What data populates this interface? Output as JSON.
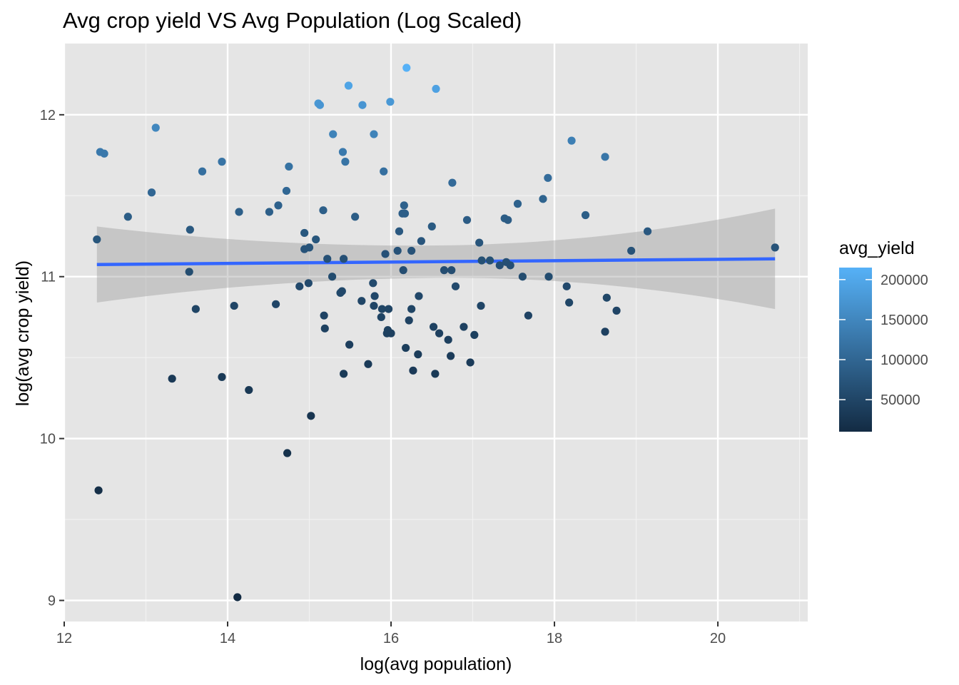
{
  "chart_data": {
    "type": "scatter",
    "title": "Avg crop yield VS Avg Population  (Log Scaled)",
    "xlabel": "log(avg population)",
    "ylabel": "log(avg crop yield)",
    "xlim": [
      12,
      21.1
    ],
    "ylim": [
      8.87,
      12.44
    ],
    "x_ticks": [
      12,
      14,
      16,
      18,
      20
    ],
    "y_ticks": [
      9,
      10,
      11,
      12
    ],
    "grid": true,
    "legend": {
      "title": "avg_yield",
      "position": "right",
      "range": [
        10000,
        215000
      ],
      "ticks": [
        50000,
        100000,
        150000,
        200000
      ],
      "color_low": "#132b43",
      "color_high": "#56b1f7"
    },
    "smooth": {
      "method": "lm",
      "color": "#3366ff",
      "ribbon_color": "#999999",
      "x_range": [
        12.4,
        20.7
      ],
      "fit": [
        11.075,
        11.11
      ],
      "se_lower": [
        10.84,
        10.8
      ],
      "se_upper": [
        11.31,
        11.42
      ]
    },
    "points": [
      {
        "x": 12.4,
        "y": 11.23
      },
      {
        "x": 12.42,
        "y": 9.68
      },
      {
        "x": 12.44,
        "y": 11.77
      },
      {
        "x": 12.49,
        "y": 11.76
      },
      {
        "x": 12.78,
        "y": 11.37
      },
      {
        "x": 13.07,
        "y": 11.52
      },
      {
        "x": 13.12,
        "y": 11.92
      },
      {
        "x": 13.32,
        "y": 10.37
      },
      {
        "x": 13.53,
        "y": 11.03
      },
      {
        "x": 13.54,
        "y": 11.29
      },
      {
        "x": 13.61,
        "y": 10.8
      },
      {
        "x": 13.69,
        "y": 11.65
      },
      {
        "x": 13.93,
        "y": 10.38
      },
      {
        "x": 13.93,
        "y": 11.71
      },
      {
        "x": 14.08,
        "y": 10.82
      },
      {
        "x": 14.12,
        "y": 9.02
      },
      {
        "x": 14.14,
        "y": 11.4
      },
      {
        "x": 14.26,
        "y": 10.3
      },
      {
        "x": 14.51,
        "y": 11.4
      },
      {
        "x": 14.59,
        "y": 10.83
      },
      {
        "x": 14.62,
        "y": 11.44
      },
      {
        "x": 14.72,
        "y": 11.53
      },
      {
        "x": 14.73,
        "y": 9.91
      },
      {
        "x": 14.75,
        "y": 11.68
      },
      {
        "x": 14.88,
        "y": 10.94
      },
      {
        "x": 14.94,
        "y": 11.27
      },
      {
        "x": 14.94,
        "y": 11.17
      },
      {
        "x": 14.99,
        "y": 10.96
      },
      {
        "x": 15.0,
        "y": 11.18
      },
      {
        "x": 15.02,
        "y": 10.14
      },
      {
        "x": 15.08,
        "y": 11.23
      },
      {
        "x": 15.11,
        "y": 12.07
      },
      {
        "x": 15.13,
        "y": 12.06
      },
      {
        "x": 15.17,
        "y": 11.41
      },
      {
        "x": 15.18,
        "y": 10.76
      },
      {
        "x": 15.19,
        "y": 10.68
      },
      {
        "x": 15.22,
        "y": 11.11
      },
      {
        "x": 15.28,
        "y": 11.0
      },
      {
        "x": 15.29,
        "y": 11.88
      },
      {
        "x": 15.38,
        "y": 10.9
      },
      {
        "x": 15.4,
        "y": 10.91
      },
      {
        "x": 15.41,
        "y": 11.77
      },
      {
        "x": 15.42,
        "y": 10.4
      },
      {
        "x": 15.42,
        "y": 11.11
      },
      {
        "x": 15.44,
        "y": 11.71
      },
      {
        "x": 15.48,
        "y": 12.18
      },
      {
        "x": 15.49,
        "y": 10.58
      },
      {
        "x": 15.56,
        "y": 11.37
      },
      {
        "x": 15.64,
        "y": 10.85
      },
      {
        "x": 15.65,
        "y": 12.06
      },
      {
        "x": 15.72,
        "y": 10.46
      },
      {
        "x": 15.78,
        "y": 10.96
      },
      {
        "x": 15.79,
        "y": 10.82
      },
      {
        "x": 15.79,
        "y": 11.88
      },
      {
        "x": 15.8,
        "y": 10.88
      },
      {
        "x": 15.88,
        "y": 10.75
      },
      {
        "x": 15.89,
        "y": 10.8
      },
      {
        "x": 15.91,
        "y": 11.65
      },
      {
        "x": 15.93,
        "y": 11.14
      },
      {
        "x": 15.95,
        "y": 10.65
      },
      {
        "x": 15.96,
        "y": 10.67
      },
      {
        "x": 15.97,
        "y": 10.8
      },
      {
        "x": 15.99,
        "y": 12.08
      },
      {
        "x": 16.0,
        "y": 10.65
      },
      {
        "x": 16.08,
        "y": 11.16
      },
      {
        "x": 16.1,
        "y": 11.28
      },
      {
        "x": 16.14,
        "y": 11.39
      },
      {
        "x": 16.15,
        "y": 11.04
      },
      {
        "x": 16.16,
        "y": 11.44
      },
      {
        "x": 16.17,
        "y": 11.39
      },
      {
        "x": 16.18,
        "y": 10.56
      },
      {
        "x": 16.19,
        "y": 12.29
      },
      {
        "x": 16.22,
        "y": 10.73
      },
      {
        "x": 16.25,
        "y": 10.8
      },
      {
        "x": 16.25,
        "y": 11.16
      },
      {
        "x": 16.27,
        "y": 10.42
      },
      {
        "x": 16.33,
        "y": 10.52
      },
      {
        "x": 16.34,
        "y": 10.88
      },
      {
        "x": 16.37,
        "y": 11.22
      },
      {
        "x": 16.5,
        "y": 11.31
      },
      {
        "x": 16.52,
        "y": 10.69
      },
      {
        "x": 16.54,
        "y": 10.4
      },
      {
        "x": 16.55,
        "y": 12.16
      },
      {
        "x": 16.59,
        "y": 10.65
      },
      {
        "x": 16.65,
        "y": 11.04
      },
      {
        "x": 16.7,
        "y": 10.61
      },
      {
        "x": 16.73,
        "y": 10.51
      },
      {
        "x": 16.74,
        "y": 11.04
      },
      {
        "x": 16.75,
        "y": 11.58
      },
      {
        "x": 16.79,
        "y": 10.94
      },
      {
        "x": 16.89,
        "y": 10.69
      },
      {
        "x": 16.93,
        "y": 11.35
      },
      {
        "x": 16.97,
        "y": 10.47
      },
      {
        "x": 17.02,
        "y": 10.64
      },
      {
        "x": 17.08,
        "y": 11.21
      },
      {
        "x": 17.1,
        "y": 10.82
      },
      {
        "x": 17.11,
        "y": 11.1
      },
      {
        "x": 17.21,
        "y": 11.1
      },
      {
        "x": 17.33,
        "y": 11.07
      },
      {
        "x": 17.39,
        "y": 11.36
      },
      {
        "x": 17.41,
        "y": 11.09
      },
      {
        "x": 17.43,
        "y": 11.35
      },
      {
        "x": 17.46,
        "y": 11.07
      },
      {
        "x": 17.55,
        "y": 11.45
      },
      {
        "x": 17.61,
        "y": 11.0
      },
      {
        "x": 17.68,
        "y": 10.76
      },
      {
        "x": 17.86,
        "y": 11.48
      },
      {
        "x": 17.92,
        "y": 11.61
      },
      {
        "x": 17.93,
        "y": 11.0
      },
      {
        "x": 18.15,
        "y": 10.94
      },
      {
        "x": 18.18,
        "y": 10.84
      },
      {
        "x": 18.21,
        "y": 11.84
      },
      {
        "x": 18.38,
        "y": 11.38
      },
      {
        "x": 18.62,
        "y": 11.74
      },
      {
        "x": 18.62,
        "y": 10.66
      },
      {
        "x": 18.64,
        "y": 10.87
      },
      {
        "x": 18.76,
        "y": 10.79
      },
      {
        "x": 18.94,
        "y": 11.16
      },
      {
        "x": 19.14,
        "y": 11.28
      },
      {
        "x": 20.7,
        "y": 11.18
      }
    ]
  }
}
